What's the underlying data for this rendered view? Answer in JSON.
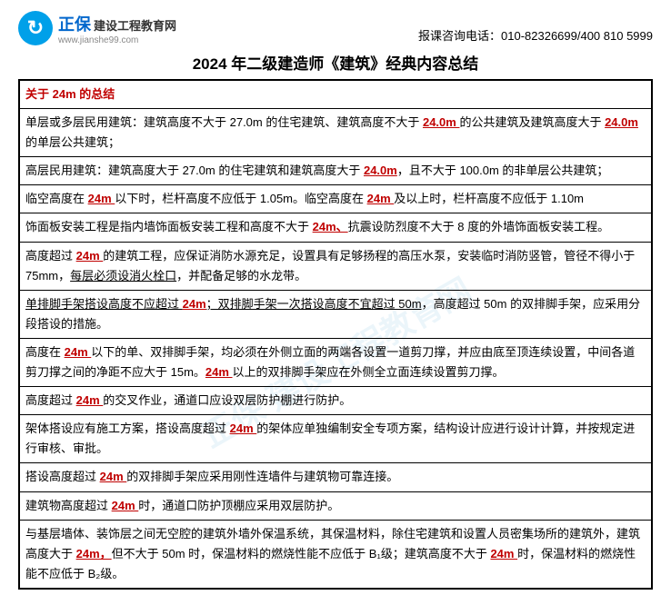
{
  "header": {
    "logo_brand": "正保",
    "logo_sub": "建设工程教育网",
    "logo_url": "www.jianshe99.com",
    "logo_glyph": "↻",
    "hotline": "报课咨询电话：010-82326699/400 810 5999"
  },
  "title": "2024 年二级建造师《建筑》经典内容总结",
  "section_header": "关于 24m 的总结",
  "rows": [
    {
      "pre": "单层或多层民用建筑：建筑高度不大于 27.0m 的住宅建筑、建筑高度不大于 ",
      "hl1": "24.0m ",
      "mid": "的公共建筑及建筑高度大于 ",
      "hl2": "24.0m ",
      "post": "的单层公共建筑；"
    },
    {
      "pre": "高层民用建筑：建筑高度大于 27.0m 的住宅建筑和建筑高度大于 ",
      "hl1": "24.0m",
      "post": "，且不大于 100.0m 的非单层公共建筑；"
    },
    {
      "pre": "临空高度在 ",
      "hl1": "24m ",
      "mid": "以下时，栏杆高度不应低于 1.05m。临空高度在 ",
      "hl2": "24m ",
      "post": "及以上时，栏杆高度不应低于 1.10m"
    },
    {
      "pre": "饰面板安装工程是指内墙饰面板安装工程和高度不大于 ",
      "hl1": "24m、",
      "post": "抗震设防烈度不大于 8 度的外墙饰面板安装工程。"
    },
    {
      "pre": "高度超过 ",
      "hl1": "24m ",
      "mid": "的建筑工程，应保证消防水源充足，设置具有足够扬程的高压水泵，安装临时消防竖管，管径不得小于 75mm，",
      "ul": "每层必须设消火栓口",
      "post": "，并配备足够的水龙带。"
    },
    {
      "pre_ul": "单排脚手架搭设高度不应超过 ",
      "hl1": "24m",
      "mid_ul": "；双排脚手架一次搭设高度不宜超过 50m",
      "post": "，高度超过 50m 的双排脚手架，应采用分段搭设的措施。"
    },
    {
      "pre": "高度在 ",
      "hl1": "24m ",
      "mid": "以下的单、双排脚手架，均必须在外侧立面的两端各设置一道剪刀撑，并应由底至顶连续设置，中间各道剪刀撑之间的净距不应大于 15m。",
      "hl2": "24m ",
      "post": "以上的双排脚手架应在外侧全立面连续设置剪刀撑。"
    },
    {
      "pre": "高度超过 ",
      "hl1": "24m ",
      "post": "的交叉作业，通道口应设双层防护棚进行防护。"
    },
    {
      "pre": "架体搭设应有施工方案，搭设高度超过 ",
      "hl1": "24m ",
      "post": "的架体应单独编制安全专项方案，结构设计应进行设计计算，并按规定进行审核、审批。"
    },
    {
      "pre": "搭设高度超过 ",
      "hl1": "24m ",
      "post": "的双排脚手架应采用刚性连墙件与建筑物可靠连接。"
    },
    {
      "pre": "建筑物高度超过 ",
      "hl1": "24m ",
      "post": "时，通道口防护顶棚应采用双层防护。"
    },
    {
      "pre": "与基层墙体、装饰层之间无空腔的建筑外墙外保温系统，其保温材料，除住宅建筑和设置人员密集场所的建筑外，建筑高度大于 ",
      "hl1": "24m，",
      "mid": "但不大于 50m 时，保温材料的燃烧性能不应低于 B₁级；建筑高度不大于 ",
      "hl2": "24m ",
      "post": "时，保温材料的燃烧性能不应低于 B₂级。"
    }
  ],
  "watermark": "正保 建设工程教育网"
}
